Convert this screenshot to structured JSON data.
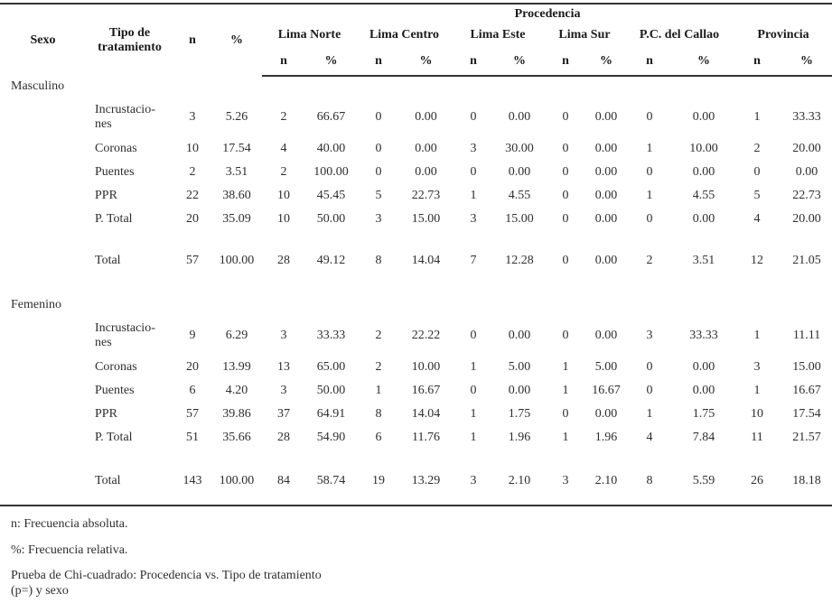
{
  "colors": {
    "text": "#2e2e2e",
    "rule": "#333333",
    "background": "#ffffff"
  },
  "table": {
    "header": {
      "sexo": "Sexo",
      "tipo": "Tipo de tratamiento",
      "n": "n",
      "pct": "%",
      "procedencia": "Procedencia",
      "regions": [
        "Lima Norte",
        "Lima Centro",
        "Lima Este",
        "Lima Sur",
        "P.C. del Callao",
        "Provincia"
      ],
      "sub": [
        "n",
        "%"
      ]
    },
    "sections": [
      {
        "sexo": "Masculino",
        "rows": [
          {
            "tratamiento": "Incrustacio-\nnes",
            "n": "3",
            "pct": "5.26",
            "cells": [
              "2",
              "66.67",
              "0",
              "0.00",
              "0",
              "0.00",
              "0",
              "0.00",
              "0",
              "0.00",
              "1",
              "33.33"
            ]
          },
          {
            "tratamiento": "Coronas",
            "n": "10",
            "pct": "17.54",
            "cells": [
              "4",
              "40.00",
              "0",
              "0.00",
              "3",
              "30.00",
              "0",
              "0.00",
              "1",
              "10.00",
              "2",
              "20.00"
            ]
          },
          {
            "tratamiento": "Puentes",
            "n": "2",
            "pct": "3.51",
            "cells": [
              "2",
              "100.00",
              "0",
              "0.00",
              "0",
              "0.00",
              "0",
              "0.00",
              "0",
              "0.00",
              "0",
              "0.00"
            ]
          },
          {
            "tratamiento": "PPR",
            "n": "22",
            "pct": "38.60",
            "cells": [
              "10",
              "45.45",
              "5",
              "22.73",
              "1",
              "4.55",
              "0",
              "0.00",
              "1",
              "4.55",
              "5",
              "22.73"
            ]
          },
          {
            "tratamiento": "P. Total",
            "n": "20",
            "pct": "35.09",
            "cells": [
              "10",
              "50.00",
              "3",
              "15.00",
              "3",
              "15.00",
              "0",
              "0.00",
              "0",
              "0.00",
              "4",
              "20.00"
            ]
          }
        ],
        "total": {
          "tratamiento": "Total",
          "n": "57",
          "pct": "100.00",
          "cells": [
            "28",
            "49.12",
            "8",
            "14.04",
            "7",
            "12.28",
            "0",
            "0.00",
            "2",
            "3.51",
            "12",
            "21.05"
          ]
        }
      },
      {
        "sexo": "Femenino",
        "rows": [
          {
            "tratamiento": "Incrustacio-\nnes",
            "n": "9",
            "pct": "6.29",
            "cells": [
              "3",
              "33.33",
              "2",
              "22.22",
              "0",
              "0.00",
              "0",
              "0.00",
              "3",
              "33.33",
              "1",
              "11.11"
            ]
          },
          {
            "tratamiento": "Coronas",
            "n": "20",
            "pct": "13.99",
            "cells": [
              "13",
              "65.00",
              "2",
              "10.00",
              "1",
              "5.00",
              "1",
              "5.00",
              "0",
              "0.00",
              "3",
              "15.00"
            ]
          },
          {
            "tratamiento": "Puentes",
            "n": "6",
            "pct": "4.20",
            "cells": [
              "3",
              "50.00",
              "1",
              "16.67",
              "0",
              "0.00",
              "1",
              "16.67",
              "0",
              "0.00",
              "1",
              "16.67"
            ]
          },
          {
            "tratamiento": "PPR",
            "n": "57",
            "pct": "39.86",
            "cells": [
              "37",
              "64.91",
              "8",
              "14.04",
              "1",
              "1.75",
              "0",
              "0.00",
              "1",
              "1.75",
              "10",
              "17.54"
            ]
          },
          {
            "tratamiento": "P. Total",
            "n": "51",
            "pct": "35.66",
            "cells": [
              "28",
              "54.90",
              "6",
              "11.76",
              "1",
              "1.96",
              "1",
              "1.96",
              "4",
              "7.84",
              "11",
              "21.57"
            ]
          }
        ],
        "total": {
          "tratamiento": "Total",
          "n": "143",
          "pct": "100.00",
          "cells": [
            "84",
            "58.74",
            "19",
            "13.29",
            "3",
            "2.10",
            "3",
            "2.10",
            "8",
            "5.59",
            "26",
            "18.18"
          ]
        }
      }
    ]
  },
  "footnotes": [
    "n: Frecuencia absoluta.",
    "%: Frecuencia relativa.",
    "Prueba de Chi-cuadrado: Procedencia vs. Tipo de tratamiento\n(p=) y sexo"
  ]
}
